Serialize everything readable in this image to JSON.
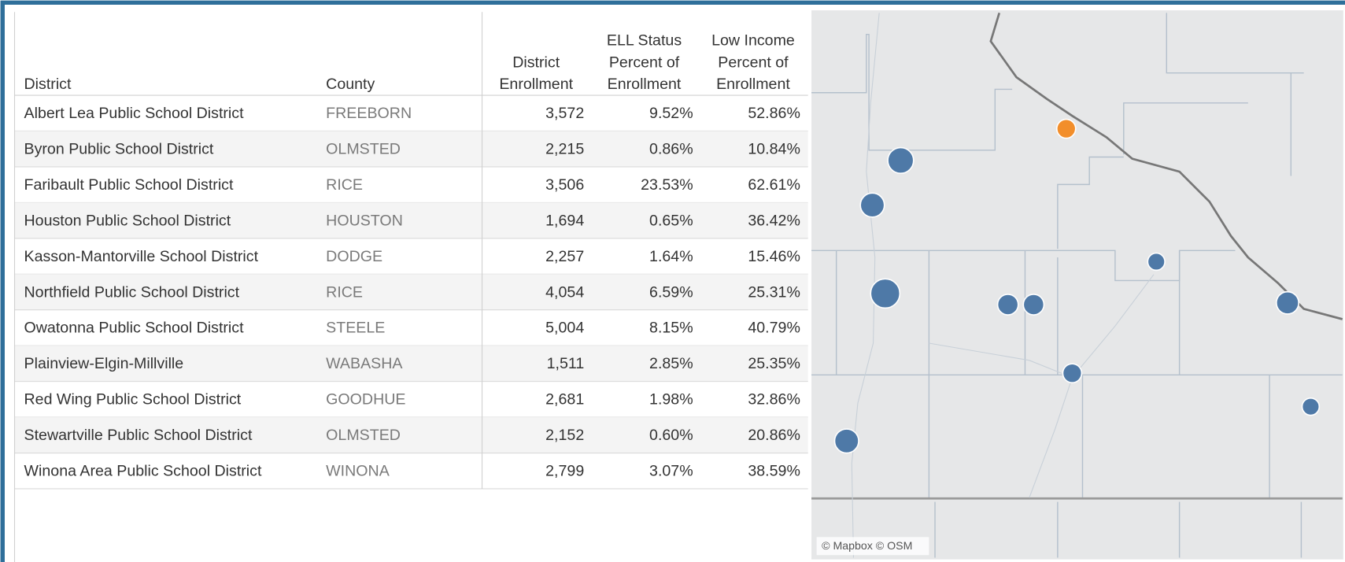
{
  "table": {
    "headers": [
      [
        "District"
      ],
      [
        "County"
      ],
      [
        "District",
        "Enrollment"
      ],
      [
        "ELL Status",
        "Percent of",
        "Enrollment"
      ],
      [
        "Low Income",
        "Percent of",
        "Enrollment"
      ]
    ],
    "rows": [
      [
        "Albert Lea Public School District",
        "FREEBORN",
        "3,572",
        "9.52%",
        "52.86%"
      ],
      [
        "Byron Public School District",
        "OLMSTED",
        "2,215",
        "0.86%",
        "10.84%"
      ],
      [
        "Faribault Public School District",
        "RICE",
        "3,506",
        "23.53%",
        "62.61%"
      ],
      [
        "Houston Public School District",
        "HOUSTON",
        "1,694",
        "0.65%",
        "36.42%"
      ],
      [
        "Kasson-Mantorville School District",
        "DODGE",
        "2,257",
        "1.64%",
        "15.46%"
      ],
      [
        "Northfield Public School District",
        "RICE",
        "4,054",
        "6.59%",
        "25.31%"
      ],
      [
        "Owatonna Public School District",
        "STEELE",
        "5,004",
        "8.15%",
        "40.79%"
      ],
      [
        "Plainview-Elgin-Millville",
        "WABASHA",
        "1,511",
        "2.85%",
        "25.35%"
      ],
      [
        "Red Wing Public School District",
        "GOODHUE",
        "2,681",
        "1.98%",
        "32.86%"
      ],
      [
        "Stewartville Public School District",
        "OLMSTED",
        "2,152",
        "0.60%",
        "20.86%"
      ],
      [
        "Winona Area Public School District",
        "WINONA",
        "2,799",
        "3.07%",
        "38.59%"
      ]
    ]
  },
  "map": {
    "attribution": "© Mapbox © OSM"
  }
}
